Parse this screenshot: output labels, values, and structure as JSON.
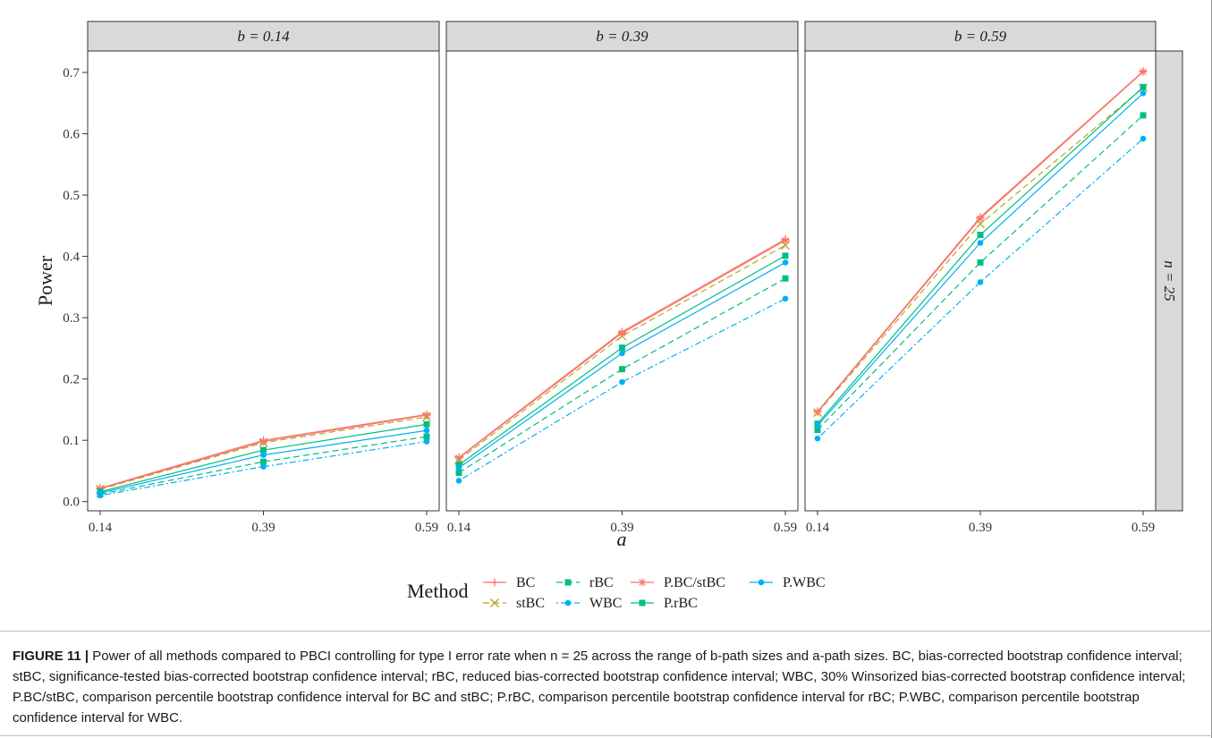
{
  "figure": {
    "caption_label": "FIGURE 11 |",
    "caption_text": "Power of all methods compared to PBCI controlling for type I error rate when n = 25 across the range of b-path sizes and a-path sizes. BC, bias-corrected bootstrap confidence interval; stBC, significance-tested bias-corrected bootstrap confidence interval; rBC, reduced bias-corrected bootstrap confidence interval; WBC, 30% Winsorized bias-corrected bootstrap confidence interval; P.BC/stBC, comparison percentile bootstrap confidence interval for BC and stBC; P.rBC, comparison percentile bootstrap confidence interval for rBC; P.WBC, comparison percentile bootstrap confidence interval for WBC."
  },
  "chart_data": {
    "type": "line",
    "facet_row_label": "n = 25",
    "xlabel": "a",
    "ylabel": "Power",
    "ylim": [
      -0.015,
      0.735
    ],
    "yticks": [
      0.0,
      0.1,
      0.2,
      0.3,
      0.4,
      0.5,
      0.6,
      0.7
    ],
    "ytick_labels": [
      "0.0",
      "0.1",
      "0.2",
      "0.3",
      "0.4",
      "0.5",
      "0.6",
      "0.7"
    ],
    "x_categories": [
      "0.14",
      "0.39",
      "0.59"
    ],
    "grid": false,
    "legend": {
      "title": "Method",
      "placement": "bottom",
      "columns": [
        [
          "BC",
          "stBC"
        ],
        [
          "rBC",
          "WBC"
        ],
        [
          "P.BC/stBC",
          "P.rBC"
        ],
        [
          "P.WBC"
        ]
      ]
    },
    "series_styles": {
      "BC": {
        "color": "#F8766D",
        "marker": "plus",
        "dash": "solid"
      },
      "stBC": {
        "color": "#B8A52A",
        "marker": "cross",
        "dash": "dashed"
      },
      "rBC": {
        "color": "#00BF7D",
        "marker": "square",
        "dash": "dashed"
      },
      "WBC": {
        "color": "#00B0F6",
        "marker": "circle",
        "dash": "dotdash"
      },
      "P.BC/stBC": {
        "color": "#F8766D",
        "marker": "asterisk",
        "dash": "solid"
      },
      "P.rBC": {
        "color": "#00BF7D",
        "marker": "square",
        "dash": "solid"
      },
      "P.WBC": {
        "color": "#00B0F6",
        "marker": "circle",
        "dash": "solid"
      }
    },
    "panels": [
      {
        "strip": "b = 0.14",
        "series": [
          {
            "name": "BC",
            "values": [
              0.022,
              0.1,
              0.142
            ]
          },
          {
            "name": "stBC",
            "values": [
              0.02,
              0.096,
              0.138
            ]
          },
          {
            "name": "rBC",
            "values": [
              0.012,
              0.065,
              0.106
            ]
          },
          {
            "name": "WBC",
            "values": [
              0.01,
              0.057,
              0.098
            ]
          },
          {
            "name": "P.BC/stBC",
            "values": [
              0.021,
              0.098,
              0.141
            ]
          },
          {
            "name": "P.rBC",
            "values": [
              0.016,
              0.084,
              0.126
            ]
          },
          {
            "name": "P.WBC",
            "values": [
              0.014,
              0.076,
              0.116
            ]
          }
        ]
      },
      {
        "strip": "b = 0.39",
        "series": [
          {
            "name": "BC",
            "values": [
              0.072,
              0.277,
              0.428
            ]
          },
          {
            "name": "stBC",
            "values": [
              0.068,
              0.27,
              0.418
            ]
          },
          {
            "name": "rBC",
            "values": [
              0.047,
              0.216,
              0.364
            ]
          },
          {
            "name": "WBC",
            "values": [
              0.034,
              0.195,
              0.331
            ]
          },
          {
            "name": "P.BC/stBC",
            "values": [
              0.071,
              0.275,
              0.426
            ]
          },
          {
            "name": "P.rBC",
            "values": [
              0.06,
              0.251,
              0.401
            ]
          },
          {
            "name": "P.WBC",
            "values": [
              0.055,
              0.242,
              0.39
            ]
          }
        ]
      },
      {
        "strip": "b = 0.59",
        "series": [
          {
            "name": "BC",
            "values": [
              0.147,
              0.464,
              0.702
            ]
          },
          {
            "name": "stBC",
            "values": [
              0.145,
              0.453,
              0.675
            ]
          },
          {
            "name": "rBC",
            "values": [
              0.117,
              0.39,
              0.63
            ]
          },
          {
            "name": "WBC",
            "values": [
              0.103,
              0.358,
              0.592
            ]
          },
          {
            "name": "P.BC/stBC",
            "values": [
              0.146,
              0.462,
              0.701
            ]
          },
          {
            "name": "P.rBC",
            "values": [
              0.127,
              0.435,
              0.676
            ]
          },
          {
            "name": "P.WBC",
            "values": [
              0.124,
              0.422,
              0.666
            ]
          }
        ]
      }
    ]
  }
}
